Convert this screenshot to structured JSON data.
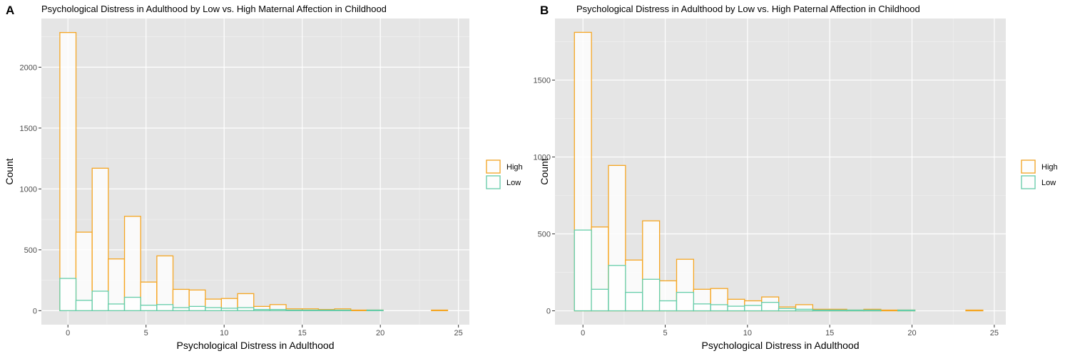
{
  "chart_data": [
    {
      "panel_label": "A",
      "type": "bar",
      "title": "Psychological Distress in Adulthood by Low vs. High Maternal Affection in Childhood",
      "xlabel": "Psychological Distress in Adulthood",
      "ylabel": "Count",
      "xlim": [
        -1.7,
        25.7
      ],
      "ylim": [
        -115,
        2400
      ],
      "xticks": [
        0,
        5,
        10,
        15,
        20,
        25
      ],
      "yticks": [
        0,
        500,
        1000,
        1500,
        2000
      ],
      "bin_width": 1.0345,
      "x": [
        0,
        1.03,
        2.07,
        3.1,
        4.14,
        5.17,
        6.21,
        7.24,
        8.28,
        9.31,
        10.34,
        11.38,
        12.41,
        13.45,
        14.48,
        15.52,
        16.55,
        17.59,
        18.62,
        19.66,
        20.69,
        21.72,
        22.76,
        23.79
      ],
      "series": [
        {
          "name": "High",
          "color": "#f5a623",
          "values": [
            2285,
            645,
            1170,
            425,
            775,
            235,
            450,
            175,
            170,
            95,
            100,
            140,
            35,
            50,
            15,
            15,
            10,
            15,
            5,
            5,
            0,
            0,
            0,
            5
          ]
        },
        {
          "name": "Low",
          "color": "#66cdaa",
          "values": [
            265,
            85,
            160,
            55,
            110,
            45,
            50,
            25,
            35,
            25,
            20,
            25,
            10,
            10,
            5,
            5,
            5,
            5,
            0,
            5,
            0,
            0,
            0,
            0
          ]
        }
      ],
      "legend": {
        "position": "right",
        "entries": [
          "High",
          "Low"
        ]
      },
      "grid": true
    },
    {
      "panel_label": "B",
      "type": "bar",
      "title": "Psychological Distress in Adulthood by Low vs. High Paternal Affection in Childhood",
      "xlabel": "Psychological Distress in Adulthood",
      "ylabel": "Count",
      "xlim": [
        -1.7,
        25.7
      ],
      "ylim": [
        -90,
        1900
      ],
      "xticks": [
        0,
        5,
        10,
        15,
        20,
        25
      ],
      "yticks": [
        0,
        500,
        1000,
        1500
      ],
      "bin_width": 1.0345,
      "x": [
        0,
        1.03,
        2.07,
        3.1,
        4.14,
        5.17,
        6.21,
        7.24,
        8.28,
        9.31,
        10.34,
        11.38,
        12.41,
        13.45,
        14.48,
        15.52,
        16.55,
        17.59,
        18.62,
        19.66,
        20.69,
        21.72,
        22.76,
        23.79
      ],
      "series": [
        {
          "name": "High",
          "color": "#f5a623",
          "values": [
            1810,
            545,
            945,
            330,
            585,
            195,
            335,
            140,
            145,
            75,
            65,
            90,
            25,
            40,
            10,
            10,
            5,
            10,
            5,
            5,
            0,
            0,
            0,
            5
          ]
        },
        {
          "name": "Low",
          "color": "#66cdaa",
          "values": [
            525,
            140,
            295,
            120,
            205,
            65,
            120,
            45,
            40,
            30,
            35,
            55,
            15,
            10,
            5,
            5,
            5,
            5,
            0,
            5,
            0,
            0,
            0,
            0
          ]
        }
      ],
      "legend": {
        "position": "right",
        "entries": [
          "High",
          "Low"
        ]
      },
      "grid": true
    }
  ]
}
